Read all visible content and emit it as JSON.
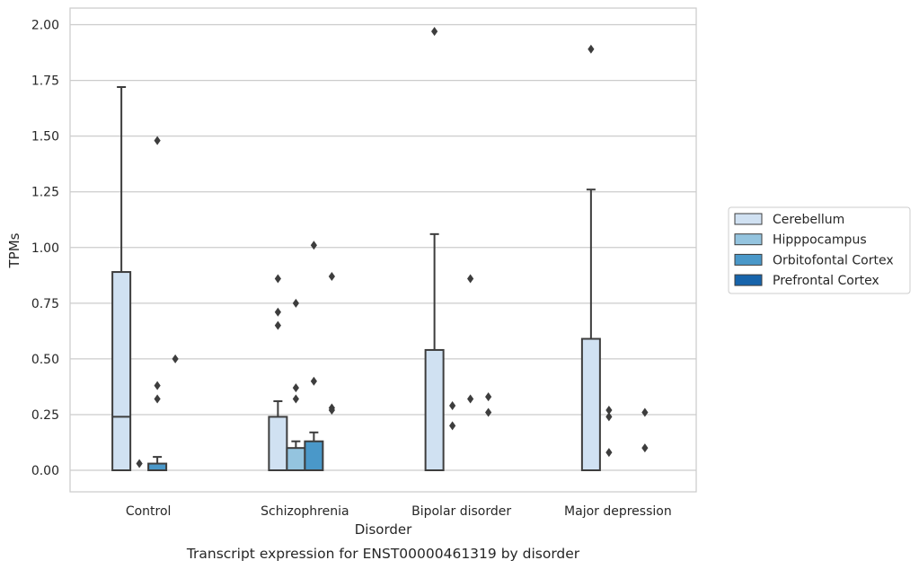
{
  "caption": "Transcript expression for ENST00000461319 by disorder",
  "chart_data": {
    "type": "box",
    "title": "",
    "xlabel": "Disorder",
    "ylabel": "TPMs",
    "ylim": [
      -0.095,
      2.07
    ],
    "yticks": [
      0.0,
      0.25,
      0.5,
      0.75,
      1.0,
      1.25,
      1.5,
      1.75,
      2.0
    ],
    "ytick_labels": [
      "0.00",
      "0.25",
      "0.50",
      "0.75",
      "1.00",
      "1.25",
      "1.50",
      "1.75",
      "2.00"
    ],
    "grid": "horizontal",
    "legend_position": "right",
    "categories": [
      "Control",
      "Schizophrenia",
      "Bipolar disorder",
      "Major depression"
    ],
    "series": [
      {
        "name": "Cerebellum",
        "color": "#d0e1f2",
        "boxes": [
          {
            "q1": 0.0,
            "median": 0.24,
            "q3": 0.89,
            "whisker_low": 0.0,
            "whisker_high": 1.72,
            "outliers": []
          },
          {
            "q1": 0.0,
            "median": 0.0,
            "q3": 0.24,
            "whisker_low": 0.0,
            "whisker_high": 0.31,
            "outliers": [
              0.86,
              0.71,
              0.65
            ]
          },
          {
            "q1": 0.0,
            "median": 0.0,
            "q3": 0.54,
            "whisker_low": 0.0,
            "whisker_high": 1.06,
            "outliers": [
              1.97
            ]
          },
          {
            "q1": 0.0,
            "median": 0.0,
            "q3": 0.59,
            "whisker_low": 0.0,
            "whisker_high": 1.26,
            "outliers": [
              1.89
            ]
          }
        ]
      },
      {
        "name": "Hipppocampus",
        "color": "#94c4df",
        "boxes": [
          {
            "q1": 0.0,
            "median": 0.0,
            "q3": 0.0,
            "whisker_low": 0.0,
            "whisker_high": 0.0,
            "outliers": [
              0.03
            ]
          },
          {
            "q1": 0.0,
            "median": 0.0,
            "q3": 0.1,
            "whisker_low": 0.0,
            "whisker_high": 0.13,
            "outliers": [
              0.75,
              0.37,
              0.32
            ]
          },
          {
            "q1": 0.0,
            "median": 0.0,
            "q3": 0.0,
            "whisker_low": 0.0,
            "whisker_high": 0.0,
            "outliers": [
              0.29,
              0.2
            ]
          },
          {
            "q1": 0.0,
            "median": 0.0,
            "q3": 0.0,
            "whisker_low": 0.0,
            "whisker_high": 0.0,
            "outliers": [
              0.27,
              0.24,
              0.08
            ]
          }
        ]
      },
      {
        "name": "Orbitofontal Cortex",
        "color": "#4a98c9",
        "boxes": [
          {
            "q1": 0.0,
            "median": 0.0,
            "q3": 0.03,
            "whisker_low": 0.0,
            "whisker_high": 0.06,
            "outliers": [
              1.48,
              0.38,
              0.32
            ]
          },
          {
            "q1": 0.0,
            "median": 0.0,
            "q3": 0.13,
            "whisker_low": 0.0,
            "whisker_high": 0.17,
            "outliers": [
              1.01,
              0.4
            ]
          },
          {
            "q1": 0.0,
            "median": 0.0,
            "q3": 0.0,
            "whisker_low": 0.0,
            "whisker_high": 0.0,
            "outliers": [
              0.86,
              0.32
            ]
          },
          {
            "q1": 0.0,
            "median": 0.0,
            "q3": 0.0,
            "whisker_low": 0.0,
            "whisker_high": 0.0,
            "outliers": []
          }
        ]
      },
      {
        "name": "Prefrontal Cortex",
        "color": "#1764ab",
        "boxes": [
          {
            "q1": 0.0,
            "median": 0.0,
            "q3": 0.0,
            "whisker_low": 0.0,
            "whisker_high": 0.0,
            "outliers": [
              0.5
            ]
          },
          {
            "q1": 0.0,
            "median": 0.0,
            "q3": 0.0,
            "whisker_low": 0.0,
            "whisker_high": 0.0,
            "outliers": [
              0.87,
              0.28,
              0.27
            ]
          },
          {
            "q1": 0.0,
            "median": 0.0,
            "q3": 0.0,
            "whisker_low": 0.0,
            "whisker_high": 0.0,
            "outliers": [
              0.33,
              0.26
            ]
          },
          {
            "q1": 0.0,
            "median": 0.0,
            "q3": 0.0,
            "whisker_low": 0.0,
            "whisker_high": 0.0,
            "outliers": [
              0.26,
              0.1
            ]
          }
        ]
      }
    ]
  }
}
